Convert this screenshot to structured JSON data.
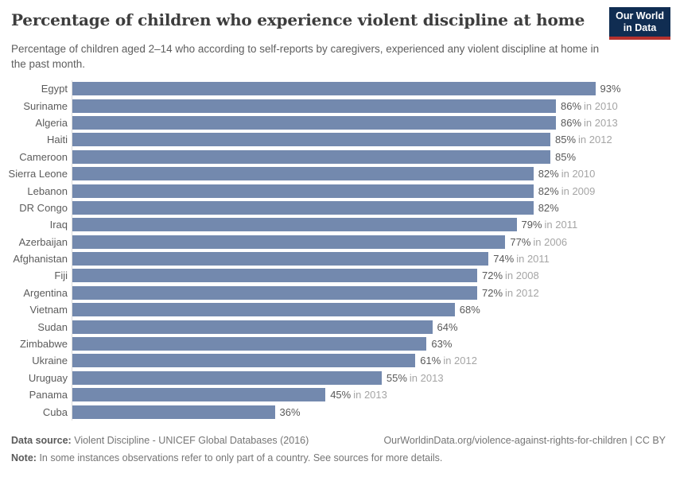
{
  "header": {
    "title": "Percentage of children who experience violent discipline at home",
    "subtitle": "Percentage of children aged 2–14 who according to self-reports by caregivers, experienced any violent discipline at home in the past month.",
    "logo": {
      "line1": "Our World",
      "line2": "in Data"
    },
    "logo_bg_color": "#102d52",
    "logo_underline_color": "#b5322e"
  },
  "chart_data": {
    "type": "bar",
    "orientation": "horizontal",
    "title": "Percentage of children who experience violent discipline at home",
    "xlabel": "",
    "ylabel": "",
    "unit": "%",
    "xlim": [
      0,
      100
    ],
    "grid": false,
    "bar_color": "#7389ae",
    "rows": [
      {
        "country": "Egypt",
        "value": 93,
        "label": "93%",
        "year_note": ""
      },
      {
        "country": "Suriname",
        "value": 86,
        "label": "86%",
        "year_note": "in 2010"
      },
      {
        "country": "Algeria",
        "value": 86,
        "label": "86%",
        "year_note": "in 2013"
      },
      {
        "country": "Haiti",
        "value": 85,
        "label": "85%",
        "year_note": "in 2012"
      },
      {
        "country": "Cameroon",
        "value": 85,
        "label": "85%",
        "year_note": ""
      },
      {
        "country": "Sierra Leone",
        "value": 82,
        "label": "82%",
        "year_note": "in 2010"
      },
      {
        "country": "Lebanon",
        "value": 82,
        "label": "82%",
        "year_note": "in 2009"
      },
      {
        "country": "DR Congo",
        "value": 82,
        "label": "82%",
        "year_note": ""
      },
      {
        "country": "Iraq",
        "value": 79,
        "label": "79%",
        "year_note": "in 2011"
      },
      {
        "country": "Azerbaijan",
        "value": 77,
        "label": "77%",
        "year_note": "in 2006"
      },
      {
        "country": "Afghanistan",
        "value": 74,
        "label": "74%",
        "year_note": "in 2011"
      },
      {
        "country": "Fiji",
        "value": 72,
        "label": "72%",
        "year_note": "in 2008"
      },
      {
        "country": "Argentina",
        "value": 72,
        "label": "72%",
        "year_note": "in 2012"
      },
      {
        "country": "Vietnam",
        "value": 68,
        "label": "68%",
        "year_note": ""
      },
      {
        "country": "Sudan",
        "value": 64,
        "label": "64%",
        "year_note": ""
      },
      {
        "country": "Zimbabwe",
        "value": 63,
        "label": "63%",
        "year_note": ""
      },
      {
        "country": "Ukraine",
        "value": 61,
        "label": "61%",
        "year_note": "in 2012"
      },
      {
        "country": "Uruguay",
        "value": 55,
        "label": "55%",
        "year_note": "in 2013"
      },
      {
        "country": "Panama",
        "value": 45,
        "label": "45%",
        "year_note": "in 2013"
      },
      {
        "country": "Cuba",
        "value": 36,
        "label": "36%",
        "year_note": ""
      }
    ]
  },
  "footer": {
    "data_source_label": "Data source:",
    "data_source_text": "Violent Discipline - UNICEF Global Databases (2016)",
    "url": "OurWorldinData.org/violence-against-rights-for-children | CC BY",
    "note_label": "Note:",
    "note_text": "In some instances observations refer to only part of a country. See sources for more details."
  }
}
